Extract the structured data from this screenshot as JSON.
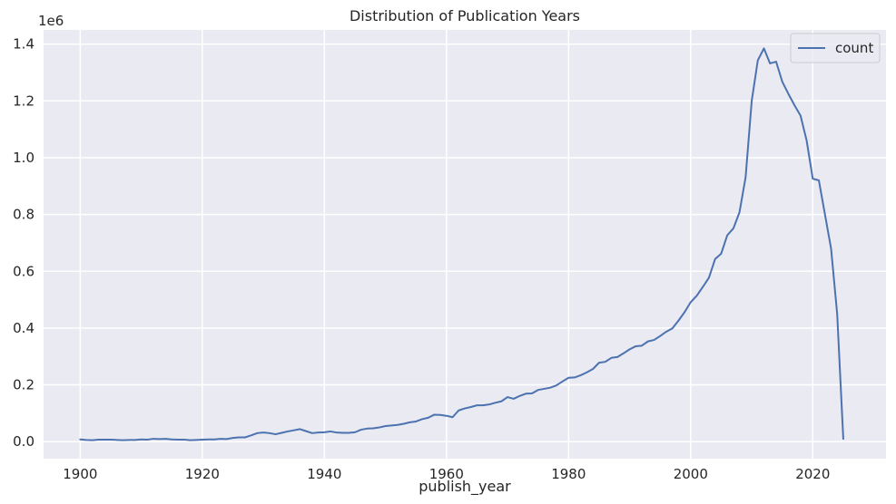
{
  "chart_data": {
    "type": "line",
    "title": "Distribution of Publication Years",
    "xlabel": "publish_year",
    "ylabel": "",
    "y_offset_label": "1e6",
    "xlim": [
      1894,
      2032
    ],
    "ylim": [
      -0.06,
      1.45
    ],
    "x_ticks": [
      1900,
      1920,
      1940,
      1960,
      1980,
      2000,
      2020
    ],
    "x_tick_labels": [
      "1900",
      "1920",
      "1940",
      "1960",
      "1980",
      "2000",
      "2020"
    ],
    "y_ticks": [
      0.0,
      0.2,
      0.4,
      0.6,
      0.8,
      1.0,
      1.2,
      1.4
    ],
    "y_tick_labels": [
      "0.0",
      "0.2",
      "0.4",
      "0.6",
      "0.8",
      "1.0",
      "1.2",
      "1.4"
    ],
    "grid": true,
    "legend": "top-right",
    "colors": {
      "line": "#4c72b0",
      "plot_bg": "#eaeaf2",
      "grid": "#ffffff"
    },
    "series": [
      {
        "name": "count",
        "x": [
          1900,
          1901,
          1902,
          1903,
          1904,
          1905,
          1906,
          1907,
          1908,
          1909,
          1910,
          1911,
          1912,
          1913,
          1914,
          1915,
          1916,
          1917,
          1918,
          1919,
          1920,
          1921,
          1922,
          1923,
          1924,
          1925,
          1926,
          1927,
          1928,
          1929,
          1930,
          1931,
          1932,
          1933,
          1934,
          1935,
          1936,
          1937,
          1938,
          1939,
          1940,
          1941,
          1942,
          1943,
          1944,
          1945,
          1946,
          1947,
          1948,
          1949,
          1950,
          1951,
          1952,
          1953,
          1954,
          1955,
          1956,
          1957,
          1958,
          1959,
          1960,
          1961,
          1962,
          1963,
          1964,
          1965,
          1966,
          1967,
          1968,
          1969,
          1970,
          1971,
          1972,
          1973,
          1974,
          1975,
          1976,
          1977,
          1978,
          1979,
          1980,
          1981,
          1982,
          1983,
          1984,
          1985,
          1986,
          1987,
          1988,
          1989,
          1990,
          1991,
          1992,
          1993,
          1994,
          1995,
          1996,
          1997,
          1998,
          1999,
          2000,
          2001,
          2002,
          2003,
          2004,
          2005,
          2006,
          2007,
          2008,
          2009,
          2010,
          2011,
          2012,
          2013,
          2014,
          2015,
          2016,
          2017,
          2018,
          2019,
          2020,
          2021,
          2022,
          2023,
          2024,
          2025
        ],
        "values": [
          0.008,
          0.006,
          0.005,
          0.007,
          0.007,
          0.007,
          0.006,
          0.005,
          0.006,
          0.006,
          0.008,
          0.007,
          0.01,
          0.009,
          0.01,
          0.008,
          0.007,
          0.007,
          0.005,
          0.006,
          0.007,
          0.008,
          0.008,
          0.01,
          0.009,
          0.013,
          0.015,
          0.015,
          0.022,
          0.03,
          0.032,
          0.03,
          0.026,
          0.031,
          0.036,
          0.04,
          0.044,
          0.037,
          0.03,
          0.032,
          0.033,
          0.036,
          0.032,
          0.031,
          0.031,
          0.033,
          0.042,
          0.046,
          0.047,
          0.05,
          0.055,
          0.057,
          0.059,
          0.063,
          0.068,
          0.071,
          0.079,
          0.084,
          0.095,
          0.094,
          0.091,
          0.086,
          0.11,
          0.117,
          0.122,
          0.128,
          0.128,
          0.131,
          0.137,
          0.142,
          0.157,
          0.151,
          0.161,
          0.169,
          0.17,
          0.182,
          0.186,
          0.19,
          0.198,
          0.212,
          0.225,
          0.226,
          0.234,
          0.244,
          0.256,
          0.278,
          0.281,
          0.295,
          0.298,
          0.311,
          0.325,
          0.336,
          0.338,
          0.353,
          0.358,
          0.372,
          0.387,
          0.399,
          0.426,
          0.456,
          0.491,
          0.514,
          0.545,
          0.578,
          0.643,
          0.662,
          0.727,
          0.751,
          0.808,
          0.931,
          1.2,
          1.343,
          1.385,
          1.332,
          1.338,
          1.268,
          1.225,
          1.185,
          1.148,
          1.06,
          0.926,
          0.92,
          0.8,
          0.68,
          0.45,
          0.01
        ]
      }
    ]
  }
}
